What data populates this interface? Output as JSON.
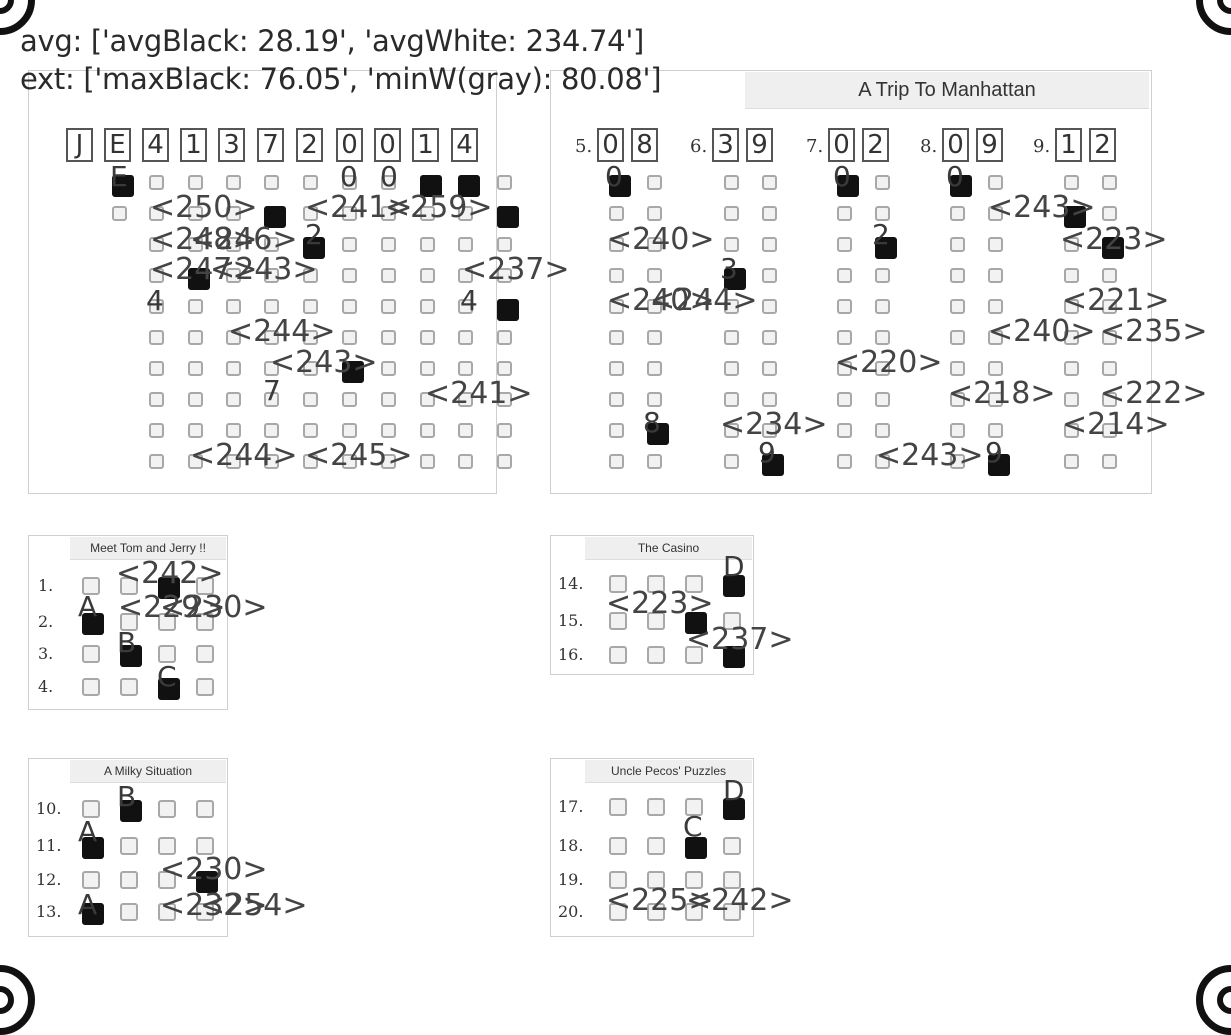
{
  "stats": {
    "avg_line": "avg: ['avgBlack: 28.19', 'avgWhite: 234.74']",
    "ext_line": "ext: ['maxBlack: 76.05', 'minW(gray): 80.08']"
  },
  "id_panel": {
    "title": "",
    "boxes": [
      "J",
      "E",
      "4",
      "1",
      "3",
      "7",
      "2",
      "0",
      "0",
      "1",
      "4"
    ]
  },
  "manhattan": {
    "title": "A Trip To Manhattan",
    "questions": [
      {
        "number": "5.",
        "digits": [
          "0",
          "8"
        ]
      },
      {
        "number": "6.",
        "digits": [
          "3",
          "9"
        ]
      },
      {
        "number": "7.",
        "digits": [
          "0",
          "2"
        ]
      },
      {
        "number": "8.",
        "digits": [
          "0",
          "9"
        ]
      },
      {
        "number": "9.",
        "digits": [
          "1",
          "2"
        ]
      }
    ]
  },
  "tom_jerry": {
    "title": "Meet Tom and Jerry !!",
    "rows": [
      "1.",
      "2.",
      "3.",
      "4."
    ]
  },
  "casino": {
    "title": "The Casino",
    "rows": [
      "14.",
      "15.",
      "16."
    ]
  },
  "milky": {
    "title": "A Milky Situation",
    "rows": [
      "10.",
      "11.",
      "12.",
      "13."
    ]
  },
  "pecos": {
    "title": "Uncle Pecos' Puzzles",
    "rows": [
      "17.",
      "18.",
      "19.",
      "20."
    ]
  },
  "marked_labels": [
    "E",
    "0",
    "0",
    "2",
    "4",
    "4",
    "7",
    "0",
    "3",
    "0",
    "2",
    "0",
    "8",
    "9",
    "9",
    "D",
    "A",
    "B",
    "C",
    "B",
    "A",
    "A",
    "D",
    "C"
  ],
  "scores": [
    "<250>",
    "<241>",
    "<259>",
    "<248>",
    "<246>",
    "<247>",
    "<243>",
    "<237>",
    "<244>",
    "<243>",
    "<241>",
    "<244>",
    "<245>",
    "<240>",
    "<243>",
    "<223>",
    "<240>",
    "<244>",
    "<221>",
    "<240>",
    "<235>",
    "<220>",
    "<218>",
    "<222>",
    "<234>",
    "<214>",
    "<243>",
    "<242>",
    "<230>",
    "<229>",
    "<223>",
    "<237>",
    "<230>",
    "<232>",
    "<254>",
    "<225>",
    "<242>"
  ]
}
